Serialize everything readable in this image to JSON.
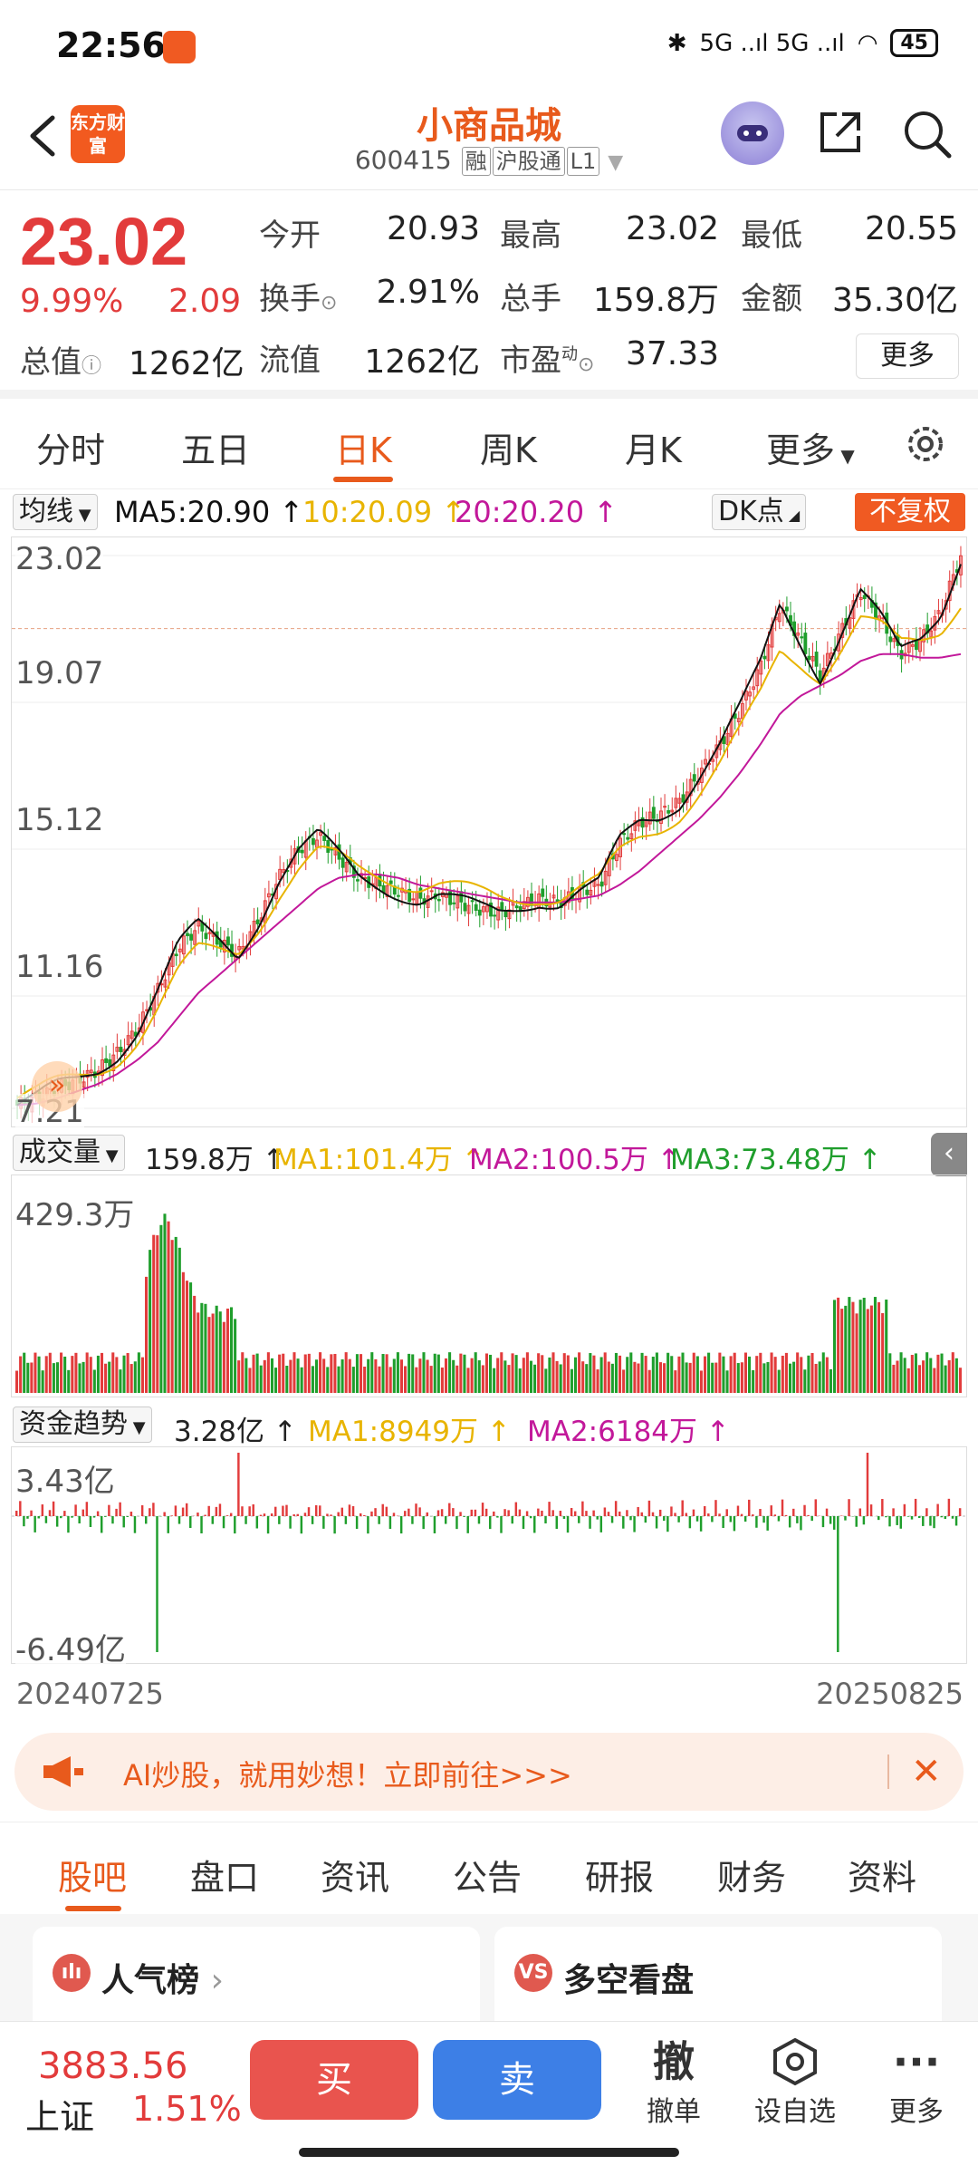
{
  "status": {
    "time": "22:56",
    "signal": "5G ..ıl 5G ..ıl",
    "battery": "45"
  },
  "header": {
    "logo": "东方财富",
    "name": "小商品城",
    "code": "600415",
    "tags": [
      "融",
      "沪股通",
      "L1"
    ]
  },
  "quote": {
    "price": "23.02",
    "change_pct": "9.99%",
    "change": "2.09",
    "open_label": "今开",
    "open": "20.93",
    "high_label": "最高",
    "high": "23.02",
    "low_label": "最低",
    "low": "20.55",
    "turnover_label": "换手",
    "turnover": "2.91%",
    "volume_label": "总手",
    "volume": "159.8万",
    "amount_label": "金额",
    "amount": "35.30亿",
    "total_val_label": "总值",
    "total_val": "1262亿",
    "float_val_label": "流值",
    "float_val": "1262亿",
    "pe_label": "市盈",
    "pe_sup": "动",
    "pe": "37.33",
    "more": "更多"
  },
  "tabs": [
    "分时",
    "五日",
    "日K",
    "周K",
    "月K",
    "更多"
  ],
  "ma_row": {
    "selector": "均线",
    "ma5": "MA5:20.90",
    "ma10": "10:20.09",
    "ma20": "20:20.20",
    "dk": "DK点",
    "adjust": "不复权",
    "colors": {
      "ma5": "#111111",
      "ma10": "#e8b400",
      "ma20": "#c2189a"
    }
  },
  "kline_axis": [
    "23.02",
    "19.07",
    "15.12",
    "11.16",
    "7.21"
  ],
  "volume_row": {
    "selector": "成交量",
    "value": "159.8万",
    "ma1": "MA1:101.4万",
    "ma2": "MA2:100.5万",
    "ma3": "MA3:73.48万",
    "axis_top": "429.3万"
  },
  "fund_row": {
    "selector": "资金趋势",
    "value": "3.28亿",
    "ma1": "MA1:8949万",
    "ma2": "MA2:6184万",
    "axis_top": "3.43亿",
    "axis_bottom": "-6.49亿"
  },
  "dates": {
    "start": "20240725",
    "end": "20250825"
  },
  "ad": {
    "text": "AI炒股，就用妙想！立即前往>>>"
  },
  "sub_tabs": [
    "股吧",
    "盘口",
    "资讯",
    "公告",
    "研报",
    "财务",
    "资料"
  ],
  "cards": [
    {
      "title": "人气榜",
      "icon": "ılı"
    },
    {
      "title": "多空看盘",
      "icon": "VS"
    }
  ],
  "trade_bar": {
    "index_value": "3883.56",
    "index_name": "上证",
    "index_pct": "1.51%",
    "buy": "买",
    "sell": "卖",
    "cancel_glyph": "撤",
    "cancel_label": "撤单",
    "watch_label": "设自选",
    "more_label": "更多"
  },
  "chart_data": {
    "type": "candlestick",
    "x_range": [
      "20240725",
      "20250825"
    ],
    "y_range": [
      7.21,
      23.02
    ],
    "close_path": [
      7.3,
      7.5,
      7.8,
      8.0,
      8.3,
      8.8,
      9.5,
      10.6,
      11.8,
      12.4,
      12.0,
      11.6,
      12.6,
      13.8,
      14.6,
      15.0,
      14.4,
      13.8,
      13.6,
      13.4,
      13.2,
      13.3,
      13.1,
      12.9,
      12.8,
      13.0,
      13.2,
      13.1,
      13.4,
      13.6,
      14.8,
      15.4,
      15.6,
      16.0,
      16.8,
      17.6,
      18.6,
      19.8,
      21.6,
      20.6,
      19.6,
      20.8,
      22.0,
      21.2,
      20.2,
      20.6,
      21.4,
      23.02
    ],
    "ma20_path": [
      7.3,
      7.35,
      7.5,
      7.7,
      7.9,
      8.2,
      8.6,
      9.1,
      9.8,
      10.5,
      11.0,
      11.5,
      12.0,
      12.5,
      13.0,
      13.5,
      13.8,
      13.9,
      13.9,
      13.8,
      13.6,
      13.5,
      13.4,
      13.3,
      13.2,
      13.1,
      13.1,
      13.1,
      13.2,
      13.3,
      13.6,
      14.0,
      14.5,
      15.0,
      15.5,
      16.1,
      16.8,
      17.6,
      18.5,
      19.0,
      19.3,
      19.6,
      20.0,
      20.2,
      20.2,
      20.1,
      20.1,
      20.2
    ]
  }
}
